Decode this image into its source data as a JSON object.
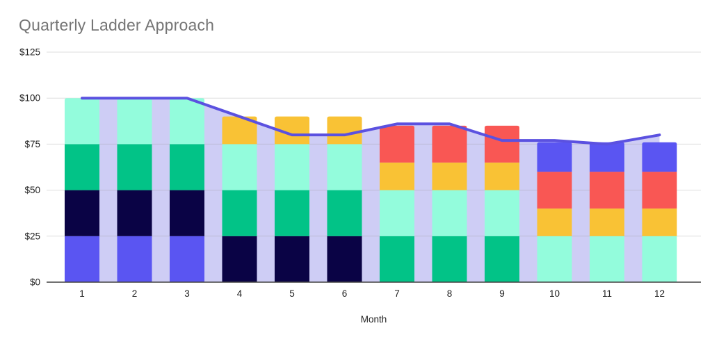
{
  "chart_data": {
    "type": "combo-stacked-bar-line-area",
    "title": "Quarterly Ladder Approach",
    "xlabel": "Month",
    "ylabel": "",
    "categories": [
      "1",
      "2",
      "3",
      "4",
      "5",
      "6",
      "7",
      "8",
      "9",
      "10",
      "11",
      "12"
    ],
    "ylim": [
      0,
      125
    ],
    "y_ticks": [
      {
        "label": "$0",
        "value": 0
      },
      {
        "label": "$25",
        "value": 25
      },
      {
        "label": "$50",
        "value": 50
      },
      {
        "label": "$75",
        "value": 75
      },
      {
        "label": "$100",
        "value": 100
      },
      {
        "label": "$125",
        "value": 125
      }
    ],
    "grid": true,
    "legend": "none",
    "bar_series": [
      {
        "name": "blue-bottom",
        "color": "#5a55f2",
        "values": [
          25,
          25,
          25,
          0,
          0,
          0,
          0,
          0,
          0,
          0,
          0,
          0
        ]
      },
      {
        "name": "navy",
        "color": "#0a0345",
        "values": [
          25,
          25,
          25,
          25,
          25,
          25,
          0,
          0,
          0,
          0,
          0,
          0
        ]
      },
      {
        "name": "green",
        "color": "#02c387",
        "values": [
          25,
          25,
          25,
          25,
          25,
          25,
          25,
          25,
          25,
          0,
          0,
          0
        ]
      },
      {
        "name": "mint",
        "color": "#93fcdc",
        "values": [
          25,
          25,
          25,
          25,
          25,
          25,
          25,
          25,
          25,
          25,
          25,
          25
        ]
      },
      {
        "name": "orange",
        "color": "#f9c235",
        "values": [
          0,
          0,
          0,
          15,
          15,
          15,
          15,
          15,
          15,
          15,
          15,
          15
        ]
      },
      {
        "name": "red",
        "color": "#f95754",
        "values": [
          0,
          0,
          0,
          0,
          0,
          0,
          20,
          20,
          20,
          20,
          20,
          20
        ]
      },
      {
        "name": "blue-top",
        "color": "#5a55f2",
        "values": [
          0,
          0,
          0,
          0,
          0,
          0,
          0,
          0,
          0,
          16,
          16,
          16
        ]
      }
    ],
    "bar_totals": [
      100,
      100,
      100,
      90,
      90,
      90,
      85,
      85,
      85,
      76,
      76,
      76
    ],
    "line_series": {
      "name": "trend",
      "color": "#5b51e0",
      "area_color": "#cecdf5",
      "values": [
        100,
        100,
        100,
        90,
        80,
        80,
        86,
        86,
        77,
        77,
        75,
        80
      ]
    },
    "colors": {
      "gridline": "#9e9e9e",
      "axis_line": "#424242",
      "tick_text": "#1f1f1f",
      "title_text": "#757575",
      "background": "#ffffff"
    }
  }
}
